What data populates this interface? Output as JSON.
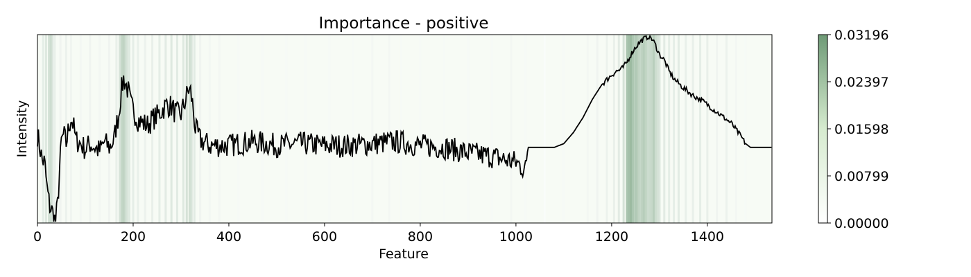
{
  "chart_data": {
    "type": "line",
    "title": "Importance - positive",
    "xlabel": "Feature",
    "ylabel": "Intensity",
    "xlim": [
      0,
      1535
    ],
    "ylim": [
      0,
      1
    ],
    "x_ticks": [
      0,
      200,
      400,
      600,
      800,
      1000,
      1200,
      1400
    ],
    "y_ticks_shown": false,
    "line_color": "#000000",
    "series": [
      {
        "values": [
          [
            0,
            0.47
          ],
          [
            5,
            0.4
          ],
          [
            10,
            0.33
          ],
          [
            15,
            0.32
          ],
          [
            20,
            0.18
          ],
          [
            25,
            0.09
          ],
          [
            30,
            0.06
          ],
          [
            35,
            0.02
          ],
          [
            38,
            0.0
          ],
          [
            42,
            0.09
          ],
          [
            45,
            0.22
          ],
          [
            50,
            0.43
          ],
          [
            55,
            0.47
          ],
          [
            60,
            0.42
          ],
          [
            65,
            0.5
          ],
          [
            70,
            0.56
          ],
          [
            75,
            0.52
          ],
          [
            80,
            0.44
          ],
          [
            90,
            0.42
          ],
          [
            100,
            0.39
          ],
          [
            110,
            0.42
          ],
          [
            120,
            0.4
          ],
          [
            130,
            0.38
          ],
          [
            140,
            0.43
          ],
          [
            150,
            0.4
          ],
          [
            160,
            0.44
          ],
          [
            165,
            0.52
          ],
          [
            170,
            0.58
          ],
          [
            175,
            0.7
          ],
          [
            180,
            0.77
          ],
          [
            185,
            0.74
          ],
          [
            190,
            0.7
          ],
          [
            195,
            0.63
          ],
          [
            200,
            0.6
          ],
          [
            210,
            0.55
          ],
          [
            220,
            0.53
          ],
          [
            230,
            0.52
          ],
          [
            240,
            0.55
          ],
          [
            250,
            0.57
          ],
          [
            260,
            0.6
          ],
          [
            270,
            0.63
          ],
          [
            280,
            0.62
          ],
          [
            290,
            0.58
          ],
          [
            300,
            0.58
          ],
          [
            310,
            0.66
          ],
          [
            315,
            0.71
          ],
          [
            320,
            0.7
          ],
          [
            325,
            0.62
          ],
          [
            330,
            0.5
          ],
          [
            340,
            0.44
          ],
          [
            360,
            0.41
          ],
          [
            380,
            0.41
          ],
          [
            400,
            0.41
          ],
          [
            420,
            0.42
          ],
          [
            450,
            0.43
          ],
          [
            480,
            0.42
          ],
          [
            500,
            0.41
          ],
          [
            550,
            0.42
          ],
          [
            600,
            0.41
          ],
          [
            650,
            0.41
          ],
          [
            700,
            0.42
          ],
          [
            750,
            0.43
          ],
          [
            800,
            0.41
          ],
          [
            850,
            0.4
          ],
          [
            900,
            0.37
          ],
          [
            950,
            0.35
          ],
          [
            1000,
            0.32
          ],
          [
            1010,
            0.3
          ],
          [
            1020,
            0.28
          ],
          [
            1025,
            0.4
          ],
          [
            1050,
            0.4
          ],
          [
            1080,
            0.4
          ],
          [
            1100,
            0.42
          ],
          [
            1120,
            0.48
          ],
          [
            1140,
            0.56
          ],
          [
            1160,
            0.66
          ],
          [
            1180,
            0.74
          ],
          [
            1200,
            0.79
          ],
          [
            1210,
            0.81
          ],
          [
            1220,
            0.82
          ],
          [
            1230,
            0.85
          ],
          [
            1240,
            0.9
          ],
          [
            1250,
            0.94
          ],
          [
            1260,
            0.97
          ],
          [
            1270,
            0.99
          ],
          [
            1280,
            1.0
          ],
          [
            1290,
            0.96
          ],
          [
            1300,
            0.9
          ],
          [
            1310,
            0.87
          ],
          [
            1320,
            0.81
          ],
          [
            1330,
            0.77
          ],
          [
            1350,
            0.72
          ],
          [
            1370,
            0.68
          ],
          [
            1390,
            0.65
          ],
          [
            1410,
            0.61
          ],
          [
            1430,
            0.57
          ],
          [
            1450,
            0.53
          ],
          [
            1470,
            0.46
          ],
          [
            1480,
            0.42
          ],
          [
            1490,
            0.4
          ],
          [
            1535,
            0.4
          ]
        ]
      }
    ],
    "heatmap": {
      "colormap": "Greens",
      "color_min": "#ffffff",
      "color_max": "#6e9a76",
      "clim": [
        0,
        0.03196
      ],
      "colorbar_ticks": [
        "0.00000",
        "0.00799",
        "0.01598",
        "0.02397",
        "0.03196"
      ],
      "bands": [
        [
          12,
          0.007
        ],
        [
          18,
          0.009
        ],
        [
          24,
          0.012
        ],
        [
          28,
          0.014
        ],
        [
          31,
          0.01
        ],
        [
          36,
          0.006
        ],
        [
          48,
          0.004
        ],
        [
          60,
          0.005
        ],
        [
          70,
          0.004
        ],
        [
          90,
          0.003
        ],
        [
          110,
          0.004
        ],
        [
          130,
          0.003
        ],
        [
          150,
          0.004
        ],
        [
          165,
          0.006
        ],
        [
          172,
          0.011
        ],
        [
          176,
          0.016
        ],
        [
          180,
          0.018
        ],
        [
          183,
          0.014
        ],
        [
          187,
          0.012
        ],
        [
          192,
          0.009
        ],
        [
          200,
          0.007
        ],
        [
          210,
          0.006
        ],
        [
          225,
          0.005
        ],
        [
          240,
          0.006
        ],
        [
          255,
          0.007
        ],
        [
          268,
          0.008
        ],
        [
          280,
          0.009
        ],
        [
          292,
          0.008
        ],
        [
          305,
          0.009
        ],
        [
          312,
          0.012
        ],
        [
          318,
          0.013
        ],
        [
          322,
          0.011
        ],
        [
          328,
          0.008
        ],
        [
          340,
          0.004
        ],
        [
          360,
          0.003
        ],
        [
          380,
          0.003
        ],
        [
          420,
          0.002
        ],
        [
          470,
          0.002
        ],
        [
          520,
          0.002
        ],
        [
          560,
          0.002
        ],
        [
          610,
          0.002
        ],
        [
          660,
          0.002
        ],
        [
          700,
          0.003
        ],
        [
          735,
          0.003
        ],
        [
          760,
          0.002
        ],
        [
          800,
          0.002
        ],
        [
          850,
          0.002
        ],
        [
          900,
          0.002
        ],
        [
          950,
          0.002
        ],
        [
          990,
          0.003
        ],
        [
          1020,
          0.002
        ],
        [
          1060,
          0.001
        ],
        [
          1100,
          0.002
        ],
        [
          1150,
          0.003
        ],
        [
          1170,
          0.004
        ],
        [
          1190,
          0.005
        ],
        [
          1205,
          0.006
        ],
        [
          1215,
          0.008
        ],
        [
          1225,
          0.012
        ],
        [
          1232,
          0.024
        ],
        [
          1236,
          0.026
        ],
        [
          1240,
          0.028
        ],
        [
          1244,
          0.024
        ],
        [
          1248,
          0.02
        ],
        [
          1252,
          0.022
        ],
        [
          1256,
          0.018
        ],
        [
          1260,
          0.016
        ],
        [
          1264,
          0.019
        ],
        [
          1268,
          0.02
        ],
        [
          1272,
          0.017
        ],
        [
          1276,
          0.014
        ],
        [
          1280,
          0.015
        ],
        [
          1284,
          0.016
        ],
        [
          1288,
          0.02
        ],
        [
          1292,
          0.014
        ],
        [
          1296,
          0.012
        ],
        [
          1300,
          0.01
        ],
        [
          1310,
          0.008
        ],
        [
          1320,
          0.007
        ],
        [
          1330,
          0.007
        ],
        [
          1340,
          0.008
        ],
        [
          1355,
          0.006
        ],
        [
          1370,
          0.006
        ],
        [
          1385,
          0.007
        ],
        [
          1400,
          0.006
        ],
        [
          1420,
          0.004
        ],
        [
          1440,
          0.005
        ],
        [
          1460,
          0.003
        ],
        [
          1480,
          0.002
        ]
      ]
    }
  }
}
